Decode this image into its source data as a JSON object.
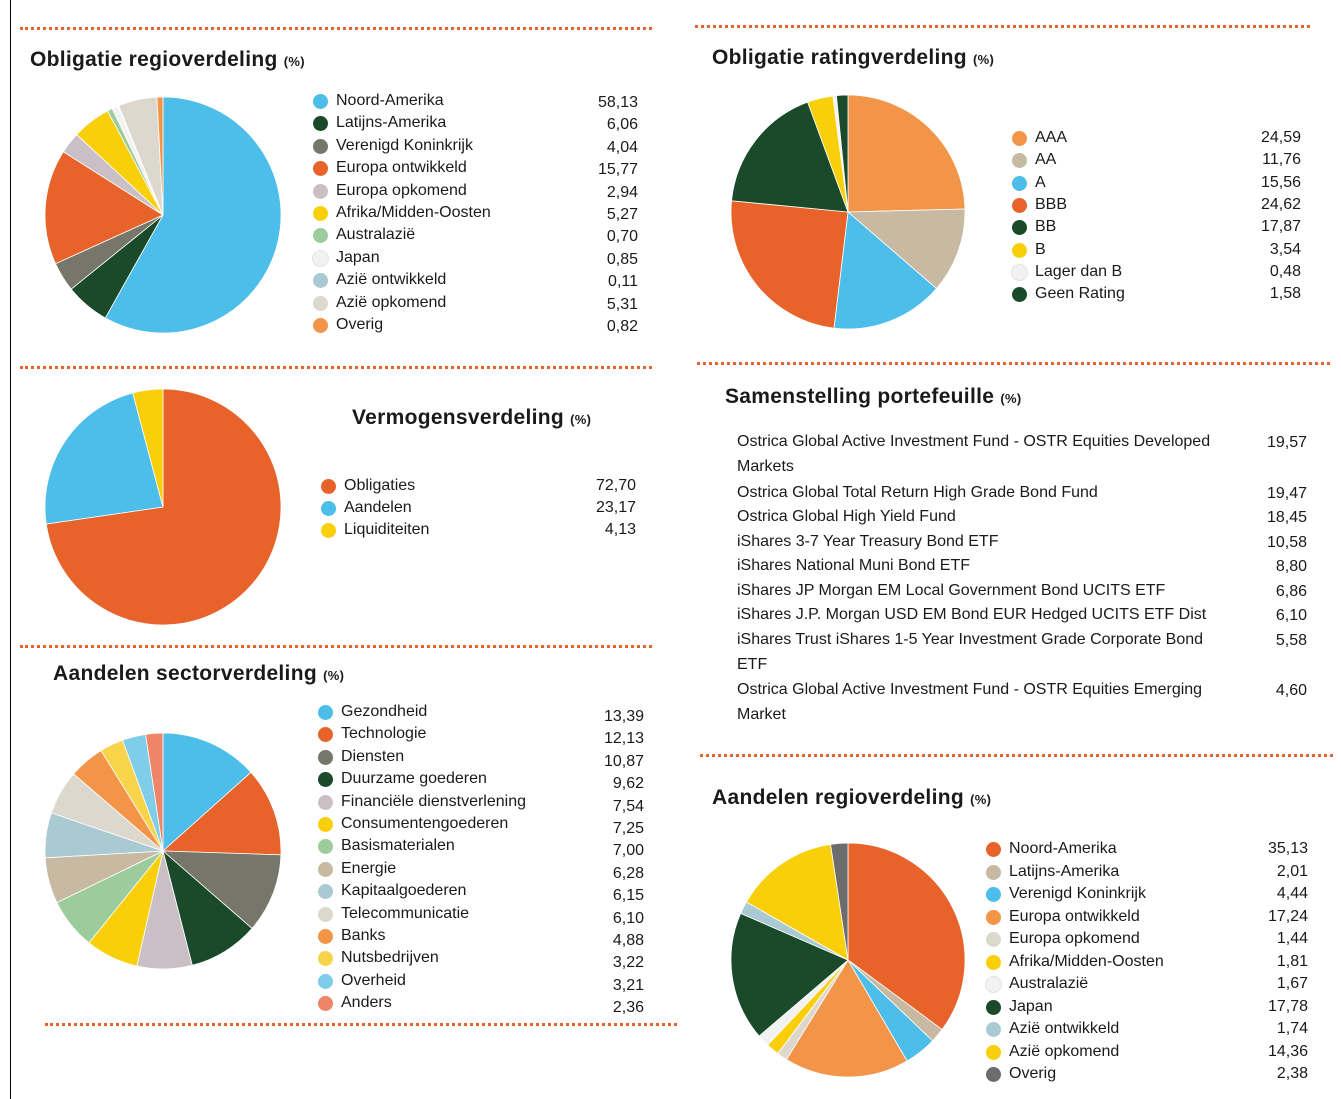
{
  "chart_data": [
    {
      "type": "pie",
      "title": "Obligatie regioverdeling",
      "unit": "(%)",
      "categories": [
        "Noord-Amerika",
        "Latijns-Amerika",
        "Verenigd Koninkrijk",
        "Europa ontwikkeld",
        "Europa opkomend",
        "Afrika/Midden-Oosten",
        "Australazië",
        "Japan",
        "Azië ontwikkeld",
        "Azië opkomend",
        "Overig"
      ],
      "values": [
        58.13,
        6.06,
        4.04,
        15.77,
        2.94,
        5.27,
        0.7,
        0.85,
        0.11,
        5.31,
        0.82
      ],
      "value_labels": [
        "58,13",
        "6,06",
        "4,04",
        "15,77",
        "2,94",
        "5,27",
        "0,70",
        "0,85",
        "0,11",
        "5,31",
        "0,82"
      ],
      "colors": [
        "#4dbde9",
        "#1a4a2a",
        "#76776a",
        "#e8632a",
        "#cbbfc6",
        "#f8cf0a",
        "#9ccc9c",
        "#f2f2f2",
        "#a9c9d3",
        "#ddd8ce",
        "#f39549"
      ]
    },
    {
      "type": "pie",
      "title": "Vermogensverdeling",
      "unit": "(%)",
      "categories": [
        "Obligaties",
        "Aandelen",
        "Liquiditeiten"
      ],
      "values": [
        72.7,
        23.17,
        4.13
      ],
      "value_labels": [
        "72,70",
        "23,17",
        "4,13"
      ],
      "colors": [
        "#e8632a",
        "#4dbde9",
        "#f8cf0a"
      ]
    },
    {
      "type": "pie",
      "title": "Aandelen sectorverdeling",
      "unit": "(%)",
      "categories": [
        "Gezondheid",
        "Technologie",
        "Diensten",
        "Duurzame goederen",
        "Financiële dienstverlening",
        "Consumentengoederen",
        "Basismaterialen",
        "Energie",
        "Kapitaalgoederen",
        "Telecommunicatie",
        "Banks",
        "Nutsbedrijven",
        "Overheid",
        "Anders"
      ],
      "values": [
        13.39,
        12.13,
        10.87,
        9.62,
        7.54,
        7.25,
        7.0,
        6.28,
        6.15,
        6.1,
        4.88,
        3.22,
        3.21,
        2.36
      ],
      "value_labels": [
        "13,39",
        "12,13",
        "10,87",
        "9,62",
        "7,54",
        "7,25",
        "7,00",
        "6,28",
        "6,15",
        "6,10",
        "4,88",
        "3,22",
        "3,21",
        "2,36"
      ],
      "colors": [
        "#4dbde9",
        "#e8632a",
        "#76776a",
        "#1a4a2a",
        "#cbbfc6",
        "#f8cf0a",
        "#9ccc9c",
        "#c8b9a3",
        "#a9c9d3",
        "#ddd8ce",
        "#f39549",
        "#f8d44a",
        "#80cdea",
        "#ee8567"
      ]
    },
    {
      "type": "pie",
      "title": "Obligatie ratingverdeling",
      "unit": "(%)",
      "categories": [
        "AAA",
        "AA",
        "A",
        "BBB",
        "BB",
        "B",
        "Lager dan B",
        "Geen Rating"
      ],
      "values": [
        24.59,
        11.76,
        15.56,
        24.62,
        17.87,
        3.54,
        0.48,
        1.58
      ],
      "value_labels": [
        "24,59",
        "11,76",
        "15,56",
        "24,62",
        "17,87",
        "3,54",
        "0,48",
        "1,58"
      ],
      "colors": [
        "#f39549",
        "#c8b9a3",
        "#4dbde9",
        "#e8632a",
        "#1a4a2a",
        "#f8cf0a",
        "#f2f2f2",
        "#1a4a2a"
      ]
    },
    {
      "type": "pie",
      "title": "Aandelen regioverdeling",
      "unit": "(%)",
      "categories": [
        "Noord-Amerika",
        "Latijns-Amerika",
        "Verenigd Koninkrijk",
        "Europa ontwikkeld",
        "Europa opkomend",
        "Afrika/Midden-Oosten",
        "Australazië",
        "Japan",
        "Azië ontwikkeld",
        "Azië opkomend",
        "Overig"
      ],
      "values": [
        35.13,
        2.01,
        4.44,
        17.24,
        1.44,
        1.81,
        1.67,
        17.78,
        1.74,
        14.36,
        2.38
      ],
      "value_labels": [
        "35,13",
        "2,01",
        "4,44",
        "17,24",
        "1,44",
        "1,81",
        "1,67",
        "17,78",
        "1,74",
        "14,36",
        "2,38"
      ],
      "colors": [
        "#e8632a",
        "#c8b9a3",
        "#4dbde9",
        "#f39549",
        "#ddd8ce",
        "#f8cf0a",
        "#f2f2f2",
        "#1a4a2a",
        "#a9c9d3",
        "#f8cf0a",
        "#6c6c6c"
      ]
    }
  ],
  "table": {
    "title": "Samenstelling portefeuille",
    "unit": "(%)",
    "rows": [
      [
        "Ostrica Global Active Investment Fund - OSTR Equities Developed Markets",
        "19,57"
      ],
      [
        "Ostrica Global Total Return High Grade Bond Fund",
        "19,47"
      ],
      [
        "Ostrica Global High Yield Fund",
        "18,45"
      ],
      [
        "iShares 3-7 Year Treasury Bond ETF",
        "10,58"
      ],
      [
        "iShares National Muni Bond ETF",
        "8,80"
      ],
      [
        "iShares JP Morgan EM Local Government Bond UCITS ETF",
        "6,86"
      ],
      [
        "iShares J.P. Morgan USD EM Bond EUR Hedged UCITS ETF Dist",
        "6,10"
      ],
      [
        "iShares Trust iShares 1-5 Year Investment Grade Corporate Bond ETF",
        "5,58"
      ],
      [
        "Ostrica Global Active Investment Fund - OSTR Equities Emerging Market",
        "4,60"
      ]
    ]
  }
}
